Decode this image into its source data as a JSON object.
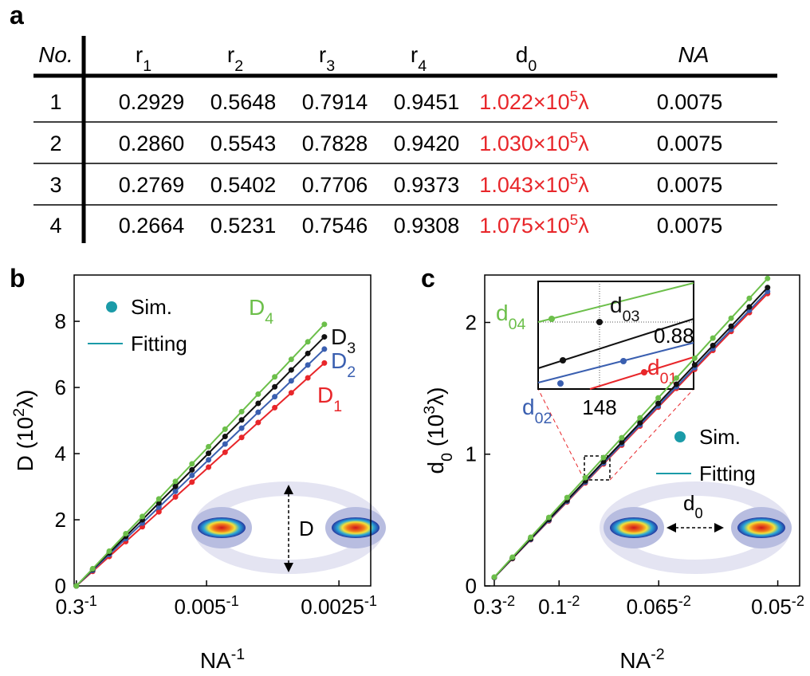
{
  "panel_labels": [
    "a",
    "b",
    "c"
  ],
  "table": {
    "highlight_column": 5,
    "highlight_color": "#e8262a",
    "header": [
      [
        {
          "text": "No.",
          "italic": true
        }
      ],
      [
        {
          "text": "r"
        },
        {
          "text": "1",
          "sub": true
        }
      ],
      [
        {
          "text": "r"
        },
        {
          "text": "2",
          "sub": true
        }
      ],
      [
        {
          "text": "r"
        },
        {
          "text": "3",
          "sub": true
        }
      ],
      [
        {
          "text": "r"
        },
        {
          "text": "4",
          "sub": true
        }
      ],
      [
        {
          "text": "d"
        },
        {
          "text": "0",
          "sub": true
        }
      ],
      [
        {
          "text": "NA",
          "italic": true
        }
      ]
    ],
    "rows": [
      [
        "1",
        "0.2929",
        "0.5648",
        "0.7914",
        "0.9451",
        [
          {
            "text": "1.022×10"
          },
          {
            "text": "5",
            "sup": true
          },
          {
            "text": "λ"
          }
        ],
        "0.0075"
      ],
      [
        "2",
        "0.2860",
        "0.5543",
        "0.7828",
        "0.9420",
        [
          {
            "text": "1.030×10"
          },
          {
            "text": "5",
            "sup": true
          },
          {
            "text": "λ"
          }
        ],
        "0.0075"
      ],
      [
        "3",
        "0.2769",
        "0.5402",
        "0.7706",
        "0.9373",
        [
          {
            "text": "1.043×10"
          },
          {
            "text": "5",
            "sup": true
          },
          {
            "text": "λ"
          }
        ],
        "0.0075"
      ],
      [
        "4",
        "0.2664",
        "0.5231",
        "0.7546",
        "0.9308",
        [
          {
            "text": "1.075×10"
          },
          {
            "text": "5",
            "sup": true
          },
          {
            "text": "λ"
          }
        ],
        "0.0075"
      ]
    ]
  },
  "chart_data": [
    {
      "type": "line",
      "markers": true,
      "xlabel": [
        {
          "text": "NA"
        },
        {
          "text": "-1",
          "sup": true
        }
      ],
      "ylabel": [
        {
          "text": "D (10"
        },
        {
          "text": "2",
          "sup": true
        },
        {
          "text": "λ)"
        }
      ],
      "xlim": [
        0,
        448
      ],
      "ylim": [
        0,
        9.4
      ],
      "xticks": [
        {
          "value": 3.33,
          "label": "0.3",
          "sup": "-1"
        },
        {
          "value": 200,
          "label": "0.005",
          "sup": "-1"
        },
        {
          "value": 400,
          "label": "0.0025",
          "sup": "-1"
        }
      ],
      "yticks": [
        0,
        2,
        4,
        6,
        8
      ],
      "x": [
        3.3,
        28,
        53,
        78,
        103,
        128,
        153,
        178,
        203,
        228,
        253,
        278,
        303,
        328,
        353,
        378
      ],
      "series": [
        {
          "name": "D",
          "name_sub": "1",
          "color": "#e8262a",
          "values": [
            0,
            0.44,
            0.89,
            1.34,
            1.79,
            2.24,
            2.69,
            3.14,
            3.59,
            4.04,
            4.49,
            4.94,
            5.39,
            5.84,
            6.29,
            6.74
          ]
        },
        {
          "name": "D",
          "name_sub": "2",
          "color": "#3a5fb0",
          "values": [
            0,
            0.47,
            0.95,
            1.43,
            1.9,
            2.38,
            2.86,
            3.34,
            3.81,
            4.29,
            4.77,
            5.25,
            5.72,
            6.2,
            6.68,
            7.16
          ]
        },
        {
          "name": "D",
          "name_sub": "3",
          "color": "#111111",
          "values": [
            0,
            0.5,
            1.0,
            1.5,
            2.0,
            2.51,
            3.01,
            3.51,
            4.01,
            4.52,
            5.02,
            5.52,
            6.02,
            6.53,
            7.03,
            7.53
          ]
        },
        {
          "name": "D",
          "name_sub": "4",
          "color": "#6cbf4a",
          "values": [
            0,
            0.52,
            1.05,
            1.58,
            2.1,
            2.63,
            3.16,
            3.69,
            4.21,
            4.74,
            5.27,
            5.8,
            6.32,
            6.85,
            7.38,
            7.91
          ]
        }
      ],
      "legend": [
        {
          "label": "Sim.",
          "marker": "dot"
        },
        {
          "label": "Fitting",
          "marker": "line"
        }
      ],
      "legend_color": "#1b9ba8",
      "inset_label": [
        {
          "text": "D"
        }
      ]
    },
    {
      "type": "line",
      "markers": true,
      "xlabel": [
        {
          "text": "NA"
        },
        {
          "text": "-2",
          "sup": true
        }
      ],
      "ylabel": [
        {
          "text": "d"
        },
        {
          "text": "0",
          "sub": true
        },
        {
          "text": " (10"
        },
        {
          "text": "3",
          "sup": true
        },
        {
          "text": "λ)"
        }
      ],
      "xlim": [
        -2,
        430
      ],
      "ylim": [
        0,
        2.36
      ],
      "xticks": [
        {
          "value": 11.1,
          "label": "0.3",
          "sup": "-2"
        },
        {
          "value": 100,
          "label": "0.1",
          "sup": "-2"
        },
        {
          "value": 236.7,
          "label": "0.065",
          "sup": "-2"
        },
        {
          "value": 400,
          "label": "0.05",
          "sup": "-2"
        }
      ],
      "yticks": [
        0,
        1,
        2
      ],
      "x": [
        11.1,
        36,
        61,
        86,
        111,
        136,
        161,
        186,
        211,
        236,
        261,
        286,
        311,
        336,
        361,
        386
      ],
      "series": [
        {
          "name": "d",
          "name_sub": "01",
          "color": "#e8262a",
          "values": [
            0.064,
            0.207,
            0.351,
            0.494,
            0.638,
            0.782,
            0.926,
            1.069,
            1.213,
            1.357,
            1.5,
            1.644,
            1.788,
            1.932,
            2.075,
            2.219
          ]
        },
        {
          "name": "d",
          "name_sub": "02",
          "color": "#3a5fb0",
          "values": [
            0.064,
            0.209,
            0.353,
            0.498,
            0.643,
            0.788,
            0.933,
            1.078,
            1.223,
            1.367,
            1.512,
            1.657,
            1.802,
            1.947,
            2.092,
            2.236
          ]
        },
        {
          "name": "d",
          "name_sub": "03",
          "color": "#111111",
          "values": [
            0.065,
            0.211,
            0.358,
            0.505,
            0.651,
            0.798,
            0.945,
            1.091,
            1.238,
            1.385,
            1.531,
            1.678,
            1.825,
            1.971,
            2.118,
            2.265
          ]
        },
        {
          "name": "d",
          "name_sub": "04",
          "color": "#6cbf4a",
          "values": [
            0.067,
            0.218,
            0.369,
            0.52,
            0.671,
            0.822,
            0.974,
            1.125,
            1.276,
            1.427,
            1.578,
            1.729,
            1.881,
            2.032,
            2.183,
            2.334
          ]
        }
      ],
      "legend": [
        {
          "label": "Sim.",
          "marker": "dot"
        },
        {
          "label": "Fitting",
          "marker": "line"
        }
      ],
      "legend_color": "#1b9ba8",
      "inset_label": [
        {
          "text": "d"
        },
        {
          "text": "0",
          "sub": true
        }
      ],
      "zoom_annotations": [
        {
          "text": "0.88"
        },
        {
          "text": "148"
        }
      ]
    }
  ]
}
